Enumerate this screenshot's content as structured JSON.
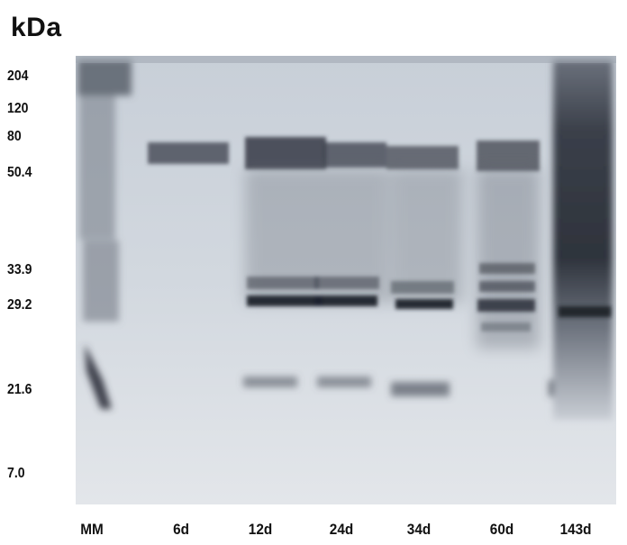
{
  "unit_label": "kDa",
  "molecular_weights": [
    "204",
    "120",
    "80",
    "50.4",
    "33.9",
    "29.2",
    "21.6",
    "7.0"
  ],
  "lanes": [
    "MM",
    "6d",
    "12d",
    "24d",
    "34d",
    "60d",
    "143d"
  ],
  "colors": {
    "gel_background": "#cfd5dd",
    "band": "#2a2f3a",
    "background": "#ffffff"
  }
}
